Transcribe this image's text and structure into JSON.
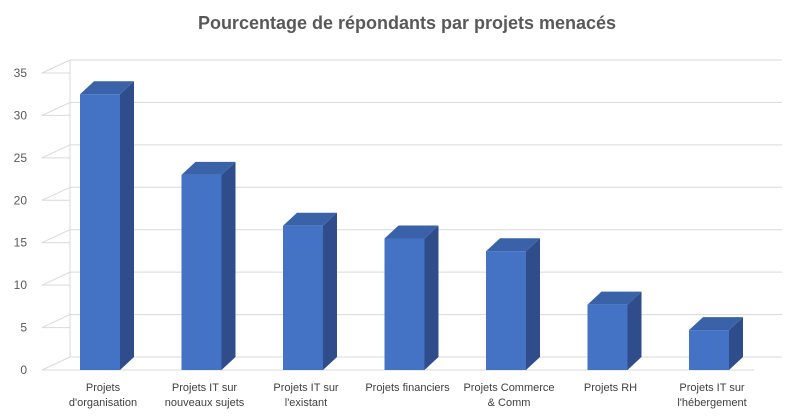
{
  "chart_data": {
    "type": "bar",
    "title": "Pourcentage de répondants par projets menacés",
    "categories": [
      [
        "Projets",
        "d'organisation"
      ],
      [
        "Projets IT sur",
        "nouveaux sujets"
      ],
      [
        "Projets IT sur",
        "l'existant"
      ],
      [
        "Projets financiers"
      ],
      [
        "Projets Commerce",
        "& Comm"
      ],
      [
        "Projets RH"
      ],
      [
        "Projets IT sur",
        "l'hébergement"
      ]
    ],
    "values": [
      32.5,
      23,
      17,
      15.5,
      14,
      7.7,
      4.7
    ],
    "ylim": [
      0,
      35
    ],
    "yticks": [
      0,
      5,
      10,
      15,
      20,
      25,
      30,
      35
    ],
    "grid": true,
    "bar_colors": {
      "front": "#4472c4",
      "side": "#2e4d8a",
      "top": "#3a62a8"
    },
    "grid_color": "#d9d9d9"
  }
}
